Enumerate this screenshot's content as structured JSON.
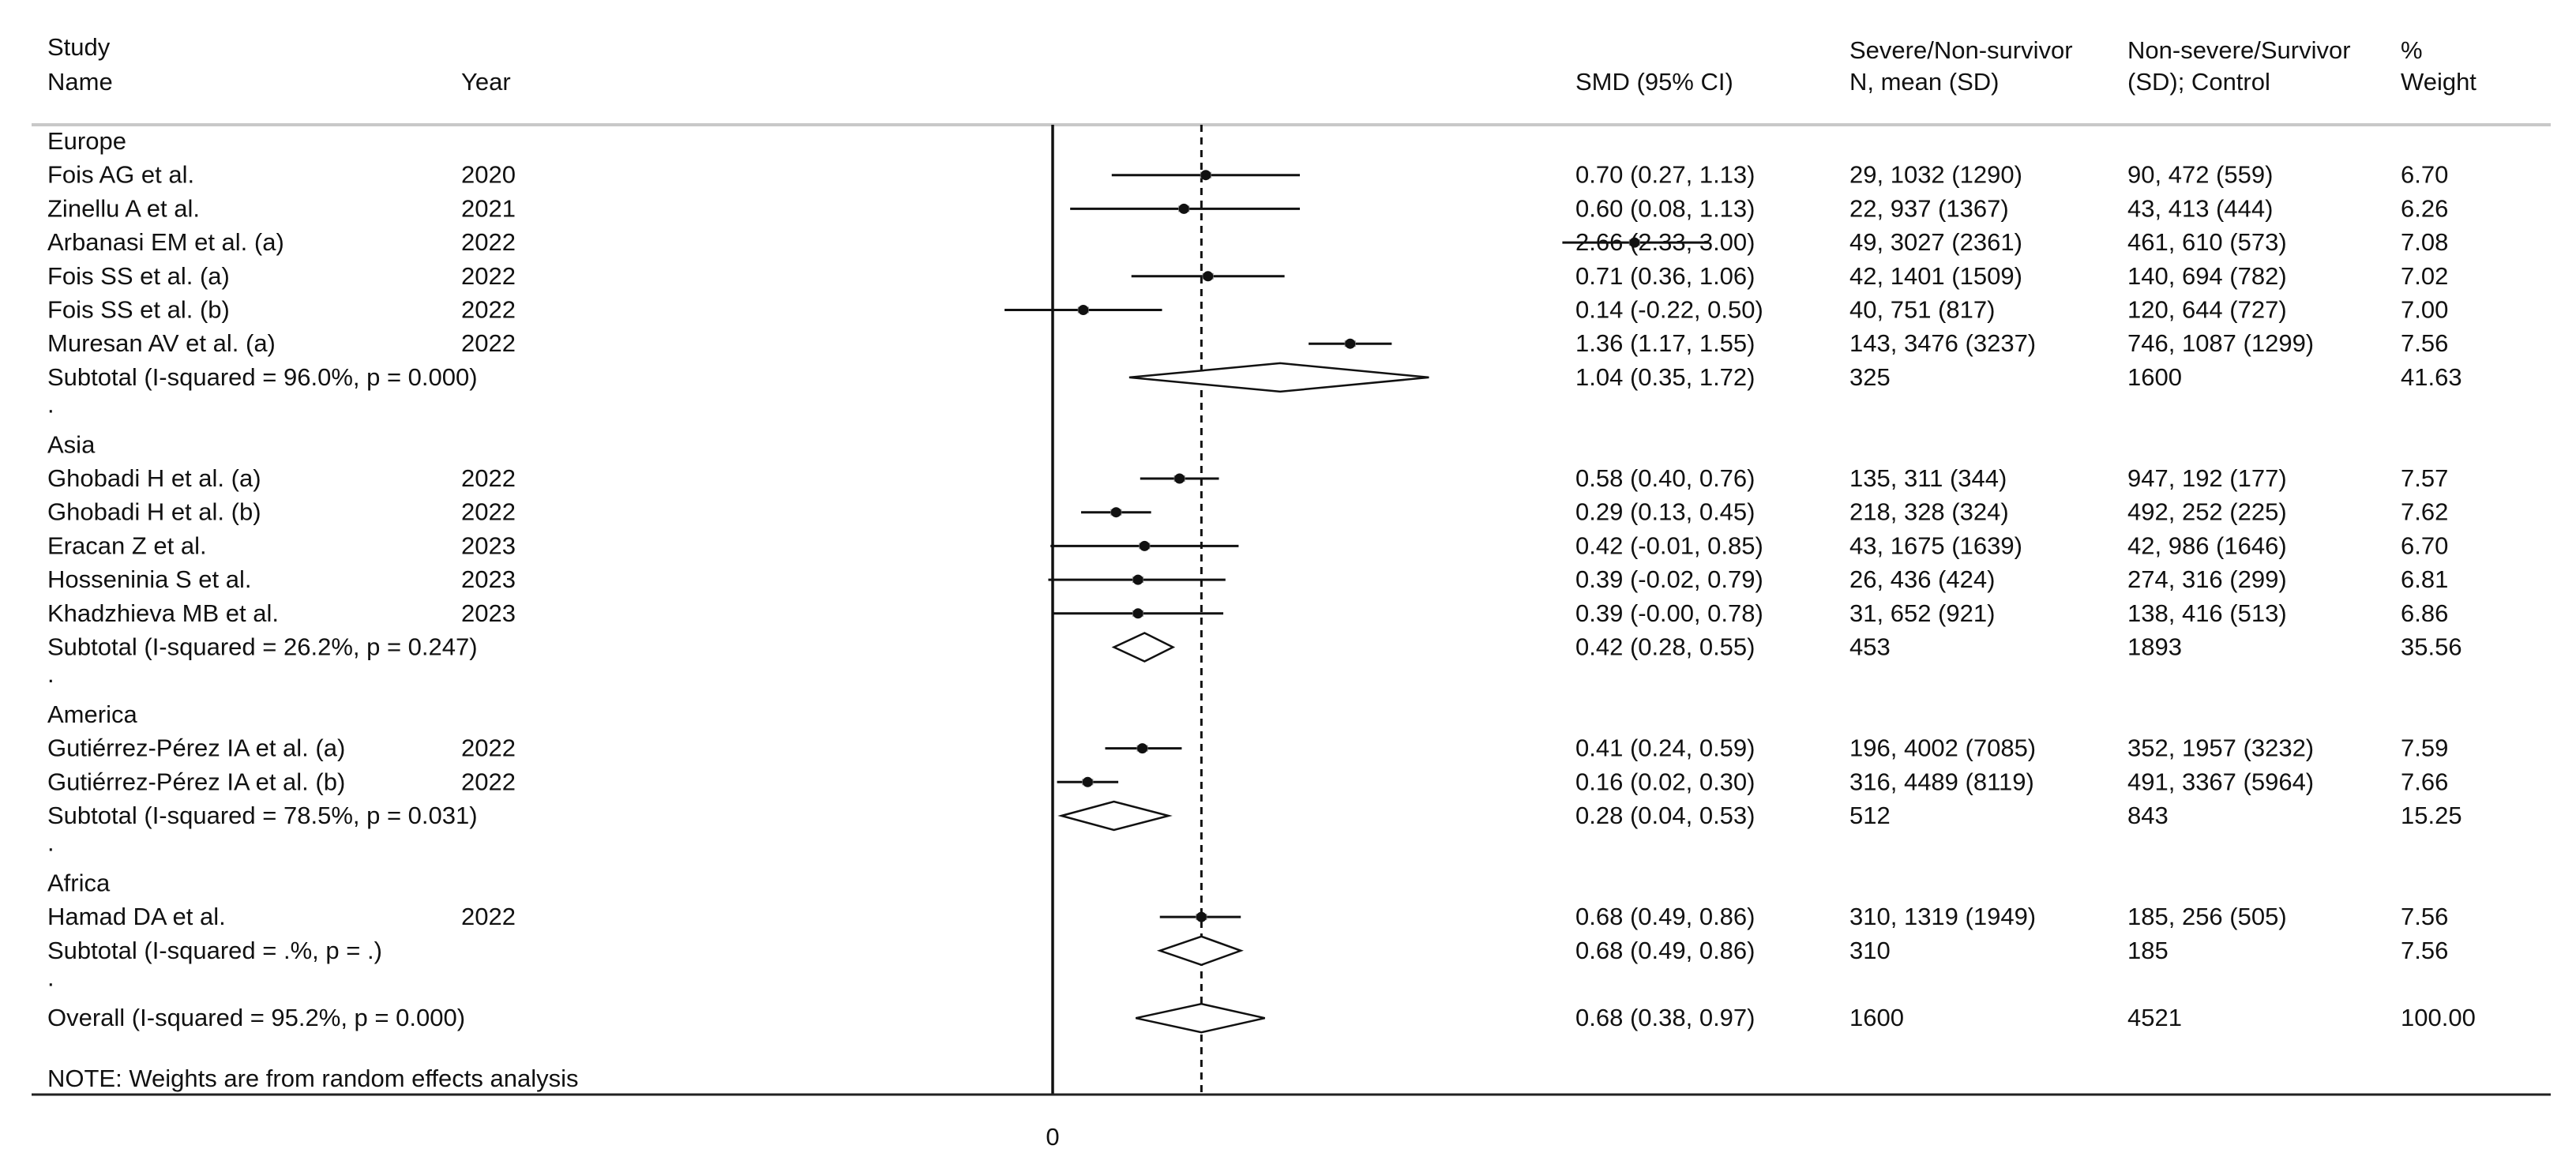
{
  "headers": {
    "study": [
      "Study",
      "Name"
    ],
    "year": "Year",
    "smd": "SMD (95% CI)",
    "cases": [
      "Severe/Non-survivor",
      "N, mean (SD)"
    ],
    "controls": [
      "Non-severe/Survivor",
      "(SD); Control"
    ],
    "weight": [
      "%",
      "Weight"
    ]
  },
  "note": "NOTE: Weights are from random effects analysis",
  "chart_data": {
    "type": "forest",
    "x_tick_labels": [
      {
        "value": 0,
        "label": "0"
      }
    ],
    "null_line": 0,
    "overall_line": 0.68,
    "rows": [
      {
        "kind": "group",
        "label": "Europe"
      },
      {
        "kind": "study",
        "study": "Fois AG et al.",
        "year": "2020",
        "smd": 0.7,
        "lo": 0.27,
        "hi": 1.13,
        "ci": "0.70 (0.27, 1.13)",
        "cases": "29, 1032 (1290)",
        "controls": "90, 472 (559)",
        "weight": "6.70"
      },
      {
        "kind": "study",
        "study": "Zinellu A et al.",
        "year": "2021",
        "smd": 0.6,
        "lo": 0.08,
        "hi": 1.13,
        "ci": "0.60 (0.08, 1.13)",
        "cases": "22, 937 (1367)",
        "controls": "43, 413 (444)",
        "weight": "6.26"
      },
      {
        "kind": "study",
        "study": "Arbanasi EM et al. (a)",
        "year": "2022",
        "smd": 2.66,
        "lo": 2.33,
        "hi": 3.0,
        "ci": "2.66 (2.33, 3.00)",
        "cases": "49, 3027 (2361)",
        "controls": "461, 610 (573)",
        "weight": "7.08"
      },
      {
        "kind": "study",
        "study": "Fois SS et al. (a)",
        "year": "2022",
        "smd": 0.71,
        "lo": 0.36,
        "hi": 1.06,
        "ci": "0.71 (0.36, 1.06)",
        "cases": "42, 1401 (1509)",
        "controls": "140, 694 (782)",
        "weight": "7.02"
      },
      {
        "kind": "study",
        "study": "Fois SS et al. (b)",
        "year": "2022",
        "smd": 0.14,
        "lo": -0.22,
        "hi": 0.5,
        "ci": "0.14 (-0.22, 0.50)",
        "cases": "40, 751 (817)",
        "controls": "120, 644 (727)",
        "weight": "7.00"
      },
      {
        "kind": "study",
        "study": "Muresan AV et al. (a)",
        "year": "2022",
        "smd": 1.36,
        "lo": 1.17,
        "hi": 1.55,
        "ci": "1.36 (1.17, 1.55)",
        "cases": "143, 3476 (3237)",
        "controls": "746, 1087 (1299)",
        "weight": "7.56"
      },
      {
        "kind": "subtotal",
        "label": "Subtotal  (I-squared = 96.0%, p = 0.000)",
        "smd": 1.04,
        "lo": 0.35,
        "hi": 1.72,
        "ci": "1.04 (0.35, 1.72)",
        "cases": "325",
        "controls": "1600",
        "weight": "41.63"
      },
      {
        "kind": "spacer",
        "label": "."
      },
      {
        "kind": "group",
        "label": "Asia"
      },
      {
        "kind": "study",
        "study": "Ghobadi H et al. (a)",
        "year": "2022",
        "smd": 0.58,
        "lo": 0.4,
        "hi": 0.76,
        "ci": "0.58 (0.40, 0.76)",
        "cases": "135, 311 (344)",
        "controls": "947, 192 (177)",
        "weight": "7.57"
      },
      {
        "kind": "study",
        "study": "Ghobadi H et al. (b)",
        "year": "2022",
        "smd": 0.29,
        "lo": 0.13,
        "hi": 0.45,
        "ci": "0.29 (0.13, 0.45)",
        "cases": "218, 328 (324)",
        "controls": "492, 252 (225)",
        "weight": "7.62"
      },
      {
        "kind": "study",
        "study": "Eracan Z et al.",
        "year": "2023",
        "smd": 0.42,
        "lo": -0.01,
        "hi": 0.85,
        "ci": "0.42 (-0.01, 0.85)",
        "cases": "43, 1675 (1639)",
        "controls": "42, 986 (1646)",
        "weight": "6.70"
      },
      {
        "kind": "study",
        "study": "Hosseninia S et al.",
        "year": "2023",
        "smd": 0.39,
        "lo": -0.02,
        "hi": 0.79,
        "ci": "0.39 (-0.02, 0.79)",
        "cases": "26, 436 (424)",
        "controls": "274, 316 (299)",
        "weight": "6.81"
      },
      {
        "kind": "study",
        "study": "Khadzhieva MB et al.",
        "year": "2023",
        "smd": 0.39,
        "lo": -0.0,
        "hi": 0.78,
        "ci": "0.39 (-0.00, 0.78)",
        "cases": "31, 652 (921)",
        "controls": "138, 416 (513)",
        "weight": "6.86"
      },
      {
        "kind": "subtotal",
        "label": "Subtotal  (I-squared = 26.2%, p = 0.247)",
        "smd": 0.42,
        "lo": 0.28,
        "hi": 0.55,
        "ci": "0.42 (0.28, 0.55)",
        "cases": "453",
        "controls": "1893",
        "weight": "35.56"
      },
      {
        "kind": "spacer",
        "label": "."
      },
      {
        "kind": "group",
        "label": "America"
      },
      {
        "kind": "study",
        "study": "Gutiérrez-Pérez IA et al. (a)",
        "year": "2022",
        "smd": 0.41,
        "lo": 0.24,
        "hi": 0.59,
        "ci": "0.41 (0.24, 0.59)",
        "cases": "196, 4002 (7085)",
        "controls": "352, 1957 (3232)",
        "weight": "7.59"
      },
      {
        "kind": "study",
        "study": "Gutiérrez-Pérez IA et al. (b)",
        "year": "2022",
        "smd": 0.16,
        "lo": 0.02,
        "hi": 0.3,
        "ci": "0.16 (0.02, 0.30)",
        "cases": "316, 4489 (8119)",
        "controls": "491, 3367 (5964)",
        "weight": "7.66"
      },
      {
        "kind": "subtotal",
        "label": "Subtotal  (I-squared = 78.5%, p = 0.031)",
        "smd": 0.28,
        "lo": 0.04,
        "hi": 0.53,
        "ci": "0.28 (0.04, 0.53)",
        "cases": "512",
        "controls": "843",
        "weight": "15.25"
      },
      {
        "kind": "spacer",
        "label": "."
      },
      {
        "kind": "group",
        "label": "Africa"
      },
      {
        "kind": "study",
        "study": "Hamad DA et al.",
        "year": "2022",
        "smd": 0.68,
        "lo": 0.49,
        "hi": 0.86,
        "ci": "0.68 (0.49, 0.86)",
        "cases": "310, 1319 (1949)",
        "controls": "185, 256 (505)",
        "weight": "7.56"
      },
      {
        "kind": "subtotal",
        "label": "Subtotal  (I-squared = .%, p = .)",
        "smd": 0.68,
        "lo": 0.49,
        "hi": 0.86,
        "ci": "0.68 (0.49, 0.86)",
        "cases": "310",
        "controls": "185",
        "weight": "7.56"
      },
      {
        "kind": "spacer",
        "label": "."
      },
      {
        "kind": "overall",
        "label": "Overall  (I-squared = 95.2%, p = 0.000)",
        "smd": 0.68,
        "lo": 0.38,
        "hi": 0.97,
        "ci": "0.68 (0.38, 0.97)",
        "cases": "1600",
        "controls": "4521",
        "weight": "100.00"
      }
    ]
  }
}
